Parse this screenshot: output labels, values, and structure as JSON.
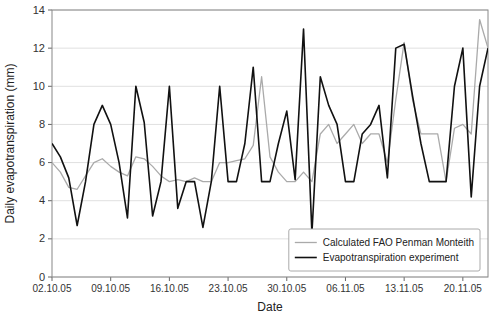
{
  "chart_data": {
    "type": "line",
    "xlabel": "Date",
    "ylabel": "Daily evapotranspiration (mm)",
    "x": [
      0,
      1,
      2,
      3,
      4,
      5,
      6,
      7,
      8,
      9,
      10,
      11,
      12,
      13,
      14,
      15,
      16,
      17,
      18,
      19,
      20,
      21,
      22,
      23,
      24,
      25,
      26,
      27,
      28,
      29,
      30,
      31,
      32,
      33,
      34,
      35,
      36,
      37,
      38,
      39,
      40,
      41,
      42,
      43,
      44,
      45,
      46,
      47,
      48,
      49,
      50,
      51,
      52
    ],
    "series": [
      {
        "name": "Calculated FAO Penman Monteith",
        "color": "#aaaaaa",
        "values": [
          6.0,
          5.5,
          4.7,
          4.6,
          5.3,
          6.0,
          6.2,
          5.8,
          5.5,
          5.3,
          6.3,
          6.2,
          5.8,
          5.3,
          5.0,
          5.1,
          5.0,
          5.2,
          5.0,
          5.0,
          6.0,
          6.0,
          6.1,
          6.2,
          6.9,
          10.5,
          6.3,
          5.5,
          5.0,
          5.0,
          5.5,
          5.0,
          7.5,
          8.0,
          7.0,
          7.5,
          8.0,
          7.0,
          7.5,
          7.5,
          6.0,
          9.3,
          12.3,
          9.3,
          7.5,
          7.5,
          7.5,
          5.0,
          7.8,
          8.0,
          7.5,
          13.5,
          12.0
        ]
      },
      {
        "name": "Evapotranspiration experiment",
        "color": "#111111",
        "values": [
          7.0,
          6.3,
          5.2,
          2.7,
          5.0,
          8.0,
          9.0,
          8.0,
          6.0,
          3.1,
          10.0,
          8.1,
          3.2,
          5.0,
          10.0,
          3.6,
          5.0,
          5.0,
          2.6,
          5.0,
          10.0,
          5.0,
          5.0,
          7.0,
          11.0,
          5.0,
          5.0,
          7.0,
          8.7,
          5.1,
          13.0,
          2.3,
          10.5,
          9.0,
          8.0,
          5.0,
          5.0,
          7.5,
          8.0,
          9.0,
          5.2,
          12.0,
          12.2,
          9.5,
          7.0,
          5.0,
          5.0,
          5.0,
          10.0,
          12.0,
          4.2,
          10.0,
          12.0
        ]
      }
    ],
    "xlim": [
      0,
      52
    ],
    "xticks": [
      {
        "value": 0,
        "label": "02.10.05"
      },
      {
        "value": 7,
        "label": "09.10.05"
      },
      {
        "value": 14,
        "label": "16.10.05"
      },
      {
        "value": 21,
        "label": "23.10.05"
      },
      {
        "value": 28,
        "label": "30.10.05"
      },
      {
        "value": 35,
        "label": "06.11.05"
      },
      {
        "value": 42,
        "label": "13.11.05"
      },
      {
        "value": 49,
        "label": "20.11.05"
      }
    ],
    "ylim": [
      0,
      14
    ],
    "yticks": [
      0,
      2,
      4,
      6,
      8,
      10,
      12,
      14
    ],
    "grid": true,
    "legend": "lower right"
  }
}
